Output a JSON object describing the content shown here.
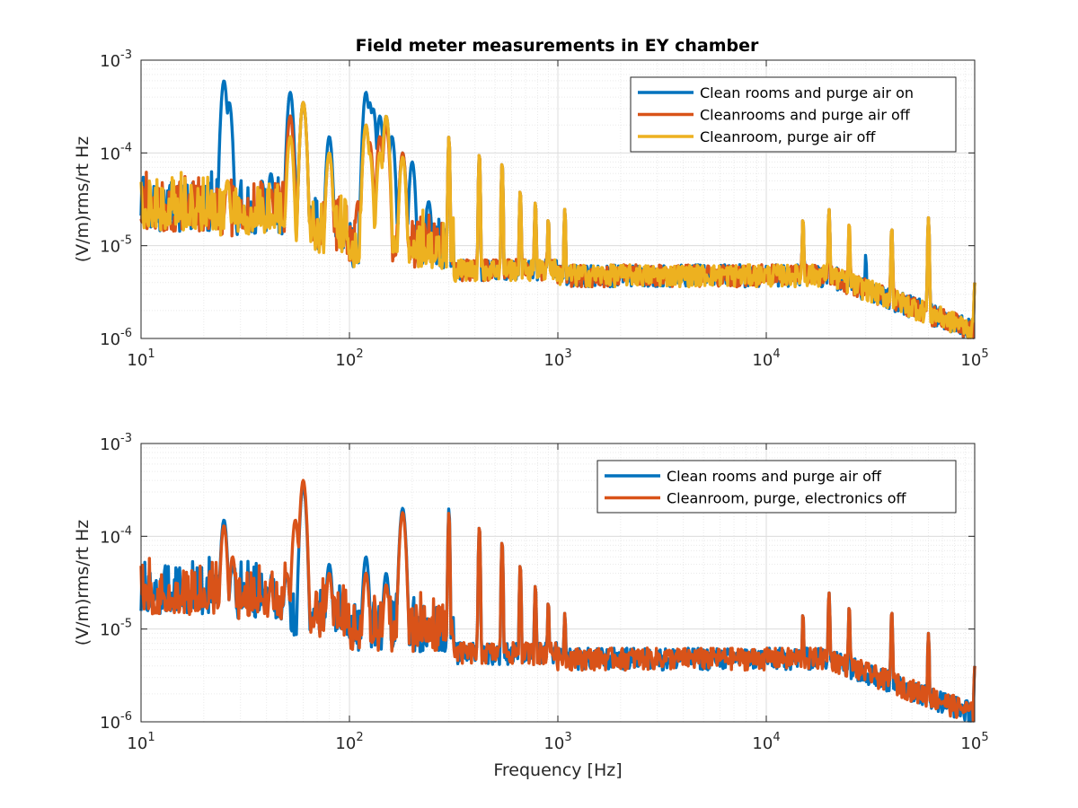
{
  "chart_data": [
    {
      "type": "line",
      "title": "Field meter measurements in EY chamber",
      "xlabel": "",
      "ylabel": "(V/m)rms/rt Hz",
      "xscale": "log",
      "yscale": "log",
      "xlim": [
        10,
        100000
      ],
      "ylim": [
        1e-06,
        0.001
      ],
      "xticks": [
        {
          "base": "10",
          "exp": "1",
          "v": 10
        },
        {
          "base": "10",
          "exp": "2",
          "v": 100
        },
        {
          "base": "10",
          "exp": "3",
          "v": 1000
        },
        {
          "base": "10",
          "exp": "4",
          "v": 10000
        },
        {
          "base": "10",
          "exp": "5",
          "v": 100000
        }
      ],
      "yticks": [
        {
          "base": "10",
          "exp": "-6",
          "v": 1e-06
        },
        {
          "base": "10",
          "exp": "-5",
          "v": 1e-05
        },
        {
          "base": "10",
          "exp": "-4",
          "v": 0.0001
        },
        {
          "base": "10",
          "exp": "-3",
          "v": 0.001
        }
      ],
      "grid": true,
      "legend_position": "top-right",
      "series": [
        {
          "name": "Clean rooms and purge air on",
          "color": "#0072BD",
          "peaks": [
            [
              25,
              0.0006
            ],
            [
              26.5,
              0.00035
            ],
            [
              38,
              5e-05
            ],
            [
              42,
              6e-05
            ],
            [
              52,
              0.00045
            ],
            [
              60,
              0.00035
            ],
            [
              80,
              0.00015
            ],
            [
              120,
              0.00045
            ],
            [
              125,
              0.00035
            ],
            [
              130,
              0.0003
            ],
            [
              140,
              0.00025
            ],
            [
              150,
              0.00025
            ],
            [
              160,
              0.00015
            ],
            [
              180,
              0.0001
            ],
            [
              200,
              8e-05
            ],
            [
              240,
              3e-05
            ],
            [
              300,
              0.00015
            ],
            [
              420,
              0.0001
            ],
            [
              540,
              8e-05
            ],
            [
              660,
              4e-05
            ],
            [
              780,
              3e-05
            ],
            [
              900,
              2e-05
            ],
            [
              1080,
              2.5e-05
            ],
            [
              15000,
              2e-05
            ],
            [
              20000,
              2.5e-05
            ],
            [
              40000,
              1.6e-05
            ],
            [
              30000,
              8e-06
            ],
            [
              60000,
              2e-05
            ],
            [
              100000,
              4e-06
            ]
          ]
        },
        {
          "name": "Cleanrooms and purge air off",
          "color": "#D95319",
          "peaks": [
            [
              26,
              5e-05
            ],
            [
              42,
              4e-05
            ],
            [
              52,
              0.00025
            ],
            [
              60,
              0.00035
            ],
            [
              80,
              0.0001
            ],
            [
              110,
              3e-05
            ],
            [
              120,
              0.0002
            ],
            [
              125,
              0.00013
            ],
            [
              140,
              0.00015
            ],
            [
              150,
              0.0002
            ],
            [
              180,
              0.0001
            ],
            [
              300,
              0.00015
            ],
            [
              420,
              0.0001
            ],
            [
              540,
              8e-05
            ],
            [
              660,
              4e-05
            ],
            [
              780,
              3e-05
            ],
            [
              900,
              2e-05
            ],
            [
              1080,
              2.5e-05
            ],
            [
              15000,
              2e-05
            ],
            [
              20000,
              2.5e-05
            ],
            [
              25000,
              1.8e-05
            ],
            [
              40000,
              1.6e-05
            ],
            [
              60000,
              2e-05
            ],
            [
              100000,
              4e-06
            ]
          ]
        },
        {
          "name": "Cleanroom, purge air off",
          "color": "#EDB120",
          "peaks": [
            [
              26,
              5e-05
            ],
            [
              52,
              0.00015
            ],
            [
              60,
              0.00035
            ],
            [
              80,
              0.0001
            ],
            [
              120,
              0.0002
            ],
            [
              125,
              0.0001
            ],
            [
              140,
              0.0001
            ],
            [
              150,
              0.00025
            ],
            [
              180,
              9e-05
            ],
            [
              300,
              0.00015
            ],
            [
              420,
              0.0001
            ],
            [
              540,
              8e-05
            ],
            [
              660,
              4e-05
            ],
            [
              780,
              3e-05
            ],
            [
              900,
              2e-05
            ],
            [
              1080,
              2.5e-05
            ],
            [
              15000,
              2e-05
            ],
            [
              20000,
              2.5e-05
            ],
            [
              25000,
              1.8e-05
            ],
            [
              40000,
              1.6e-05
            ],
            [
              60000,
              2e-05
            ],
            [
              100000,
              4e-06
            ]
          ]
        }
      ]
    },
    {
      "type": "line",
      "title": "",
      "xlabel": "Frequency [Hz]",
      "ylabel": "(V/m)rms/rt Hz",
      "xscale": "log",
      "yscale": "log",
      "xlim": [
        10,
        100000
      ],
      "ylim": [
        1e-06,
        0.001
      ],
      "xticks": [
        {
          "base": "10",
          "exp": "1",
          "v": 10
        },
        {
          "base": "10",
          "exp": "2",
          "v": 100
        },
        {
          "base": "10",
          "exp": "3",
          "v": 1000
        },
        {
          "base": "10",
          "exp": "4",
          "v": 10000
        },
        {
          "base": "10",
          "exp": "5",
          "v": 100000
        }
      ],
      "yticks": [
        {
          "base": "10",
          "exp": "-6",
          "v": 1e-06
        },
        {
          "base": "10",
          "exp": "-5",
          "v": 1e-05
        },
        {
          "base": "10",
          "exp": "-4",
          "v": 0.0001
        },
        {
          "base": "10",
          "exp": "-3",
          "v": 0.001
        }
      ],
      "grid": true,
      "legend_position": "top-right",
      "series": [
        {
          "name": "Clean rooms and purge air off",
          "color": "#0072BD",
          "peaks": [
            [
              25,
              0.00015
            ],
            [
              27.5,
              5e-05
            ],
            [
              38,
              2e-05
            ],
            [
              42,
              3e-05
            ],
            [
              50,
              4e-05
            ],
            [
              60,
              0.00035
            ],
            [
              80,
              5e-05
            ],
            [
              120,
              6e-05
            ],
            [
              150,
              4e-05
            ],
            [
              180,
              0.0002
            ],
            [
              300,
              0.0002
            ],
            [
              420,
              0.00013
            ],
            [
              540,
              9e-05
            ],
            [
              660,
              5e-05
            ],
            [
              780,
              3e-05
            ],
            [
              900,
              2e-05
            ],
            [
              1080,
              1.5e-05
            ],
            [
              15000,
              1.5e-05
            ],
            [
              20000,
              2.5e-05
            ],
            [
              25000,
              1.8e-05
            ],
            [
              40000,
              1.6e-05
            ],
            [
              60000,
              9e-06
            ],
            [
              100000,
              4e-06
            ]
          ]
        },
        {
          "name": "Cleanroom, purge, electronics off",
          "color": "#D95319",
          "peaks": [
            [
              25,
              0.00013
            ],
            [
              27.5,
              6e-05
            ],
            [
              38,
              2e-05
            ],
            [
              42,
              3e-05
            ],
            [
              50,
              4e-05
            ],
            [
              55,
              0.00015
            ],
            [
              60,
              0.0004
            ],
            [
              80,
              4e-05
            ],
            [
              120,
              4e-05
            ],
            [
              150,
              3e-05
            ],
            [
              180,
              0.00018
            ],
            [
              300,
              0.00018
            ],
            [
              420,
              0.00013
            ],
            [
              540,
              9e-05
            ],
            [
              660,
              5e-05
            ],
            [
              780,
              3e-05
            ],
            [
              900,
              2e-05
            ],
            [
              1080,
              1.5e-05
            ],
            [
              15000,
              1.5e-05
            ],
            [
              20000,
              2.5e-05
            ],
            [
              25000,
              1.8e-05
            ],
            [
              40000,
              1.6e-05
            ],
            [
              60000,
              9e-06
            ],
            [
              100000,
              4e-06
            ]
          ]
        }
      ]
    }
  ]
}
